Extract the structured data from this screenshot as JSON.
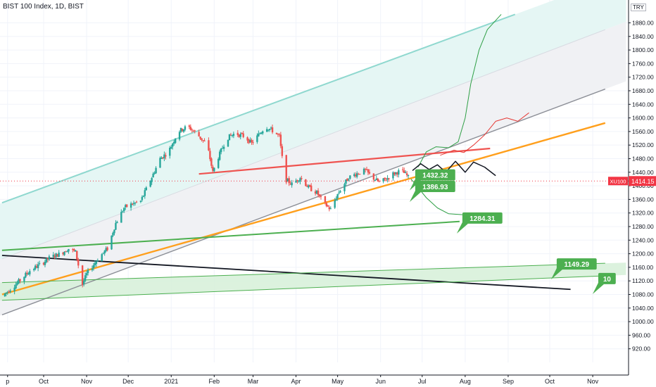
{
  "header": {
    "title": "BIST 100 Index, 1D, BIST",
    "currency": "TRY"
  },
  "colors": {
    "up": "#26a69a",
    "down": "#ef5350",
    "channel_line": "#8fd8cf",
    "channel_fill": "#e5f6f4",
    "inner_fill": "#f0f1f4",
    "orange": "#ff9f1c",
    "green": "#4caf50",
    "resistance": "#ef5350",
    "last_price": "#f23645"
  },
  "chart_data": {
    "type": "candlestick",
    "symbol": "XU100",
    "last_price": 1414.15,
    "last_price_label": "1414.15",
    "x_axis": {
      "ticks": [
        {
          "label": "p",
          "day": -26
        },
        {
          "label": "Oct",
          "day": 0
        },
        {
          "label": "Nov",
          "day": 31
        },
        {
          "label": "Dec",
          "day": 61
        },
        {
          "label": "2021",
          "day": 92
        },
        {
          "label": "Feb",
          "day": 123
        },
        {
          "label": "Mar",
          "day": 151
        },
        {
          "label": "Apr",
          "day": 182
        },
        {
          "label": "May",
          "day": 212
        },
        {
          "label": "Jun",
          "day": 243
        },
        {
          "label": "Jul",
          "day": 273
        },
        {
          "label": "Aug",
          "day": 304
        },
        {
          "label": "Sep",
          "day": 335
        },
        {
          "label": "Oct",
          "day": 365
        },
        {
          "label": "Nov",
          "day": 396
        }
      ]
    },
    "y_axis": {
      "min": 880,
      "max": 1910,
      "ticks": [
        920,
        960,
        1000,
        1040,
        1080,
        1120,
        1160,
        1200,
        1240,
        1280,
        1320,
        1360,
        1400,
        1440,
        1480,
        1520,
        1560,
        1600,
        1640,
        1680,
        1720,
        1760,
        1800,
        1840,
        1880
      ],
      "tick_labels": [
        "920.00",
        "960.00",
        "1000.00",
        "1040.00",
        "1080.00",
        "1120.00",
        "1160.00",
        "1200.00",
        "1240.00",
        "1280.00",
        "1320.00",
        "1360.00",
        "1400.00",
        "1440.00",
        "1480.00",
        "1520.00",
        "1560.00",
        "1600.00",
        "1640.00",
        "1680.00",
        "1720.00",
        "1760.00",
        "1800.00",
        "1840.00",
        "1880.00"
      ]
    },
    "price_path": [
      [
        -30,
        1075
      ],
      [
        -20,
        1110
      ],
      [
        -10,
        1150
      ],
      [
        0,
        1175
      ],
      [
        5,
        1190
      ],
      [
        12,
        1200
      ],
      [
        18,
        1215
      ],
      [
        23,
        1205
      ],
      [
        28,
        1110
      ],
      [
        31,
        1140
      ],
      [
        40,
        1190
      ],
      [
        46,
        1215
      ],
      [
        52,
        1290
      ],
      [
        58,
        1335
      ],
      [
        63,
        1345
      ],
      [
        70,
        1355
      ],
      [
        78,
        1425
      ],
      [
        84,
        1480
      ],
      [
        90,
        1500
      ],
      [
        97,
        1560
      ],
      [
        104,
        1575
      ],
      [
        110,
        1555
      ],
      [
        118,
        1520
      ],
      [
        122,
        1440
      ],
      [
        126,
        1485
      ],
      [
        132,
        1540
      ],
      [
        138,
        1555
      ],
      [
        145,
        1545
      ],
      [
        150,
        1525
      ],
      [
        155,
        1550
      ],
      [
        160,
        1575
      ],
      [
        166,
        1560
      ],
      [
        170,
        1545
      ],
      [
        174,
        1420
      ],
      [
        179,
        1405
      ],
      [
        185,
        1425
      ],
      [
        191,
        1395
      ],
      [
        197,
        1380
      ],
      [
        202,
        1350
      ],
      [
        207,
        1330
      ],
      [
        212,
        1375
      ],
      [
        220,
        1425
      ],
      [
        228,
        1440
      ],
      [
        232,
        1445
      ],
      [
        237,
        1425
      ],
      [
        242,
        1410
      ],
      [
        247,
        1420
      ],
      [
        252,
        1435
      ],
      [
        258,
        1445
      ],
      [
        262,
        1430
      ],
      [
        265,
        1414
      ]
    ],
    "trendlines": [
      {
        "name": "channel-upper",
        "points": [
          [
            -30,
            1350
          ],
          [
            340,
            1905
          ]
        ]
      },
      {
        "name": "channel-mid",
        "points": [
          [
            -30,
            1185
          ],
          [
            405,
            1860
          ]
        ]
      },
      {
        "name": "channel-lower",
        "points": [
          [
            -30,
            1020
          ],
          [
            405,
            1685
          ]
        ]
      },
      {
        "name": "orange-support",
        "points": [
          [
            -30,
            1080
          ],
          [
            405,
            1585
          ]
        ]
      },
      {
        "name": "resistance",
        "points": [
          [
            112,
            1435
          ],
          [
            322,
            1510
          ]
        ]
      },
      {
        "name": "green-support",
        "points": [
          [
            -30,
            1210
          ],
          [
            300,
            1295
          ]
        ]
      },
      {
        "name": "black-line",
        "points": [
          [
            -30,
            1195
          ],
          [
            380,
            1095
          ]
        ]
      },
      {
        "name": "lower-band-top",
        "points": [
          [
            -30,
            1115
          ],
          [
            405,
            1172
          ]
        ]
      },
      {
        "name": "lower-band-bottom",
        "points": [
          [
            -30,
            1063
          ],
          [
            405,
            1135
          ]
        ]
      }
    ],
    "projections": [
      {
        "name": "bull-path",
        "color": "green",
        "points": [
          [
            270,
            1455
          ],
          [
            276,
            1500
          ],
          [
            283,
            1515
          ],
          [
            292,
            1512
          ],
          [
            299,
            1530
          ],
          [
            304,
            1600
          ],
          [
            308,
            1700
          ],
          [
            314,
            1800
          ],
          [
            320,
            1860
          ],
          [
            330,
            1905
          ]
        ]
      },
      {
        "name": "bear-path",
        "color": "green",
        "points": [
          [
            265,
            1420
          ],
          [
            270,
            1395
          ],
          [
            276,
            1365
          ],
          [
            284,
            1335
          ],
          [
            292,
            1318
          ],
          [
            302,
            1315
          ]
        ]
      },
      {
        "name": "red-path",
        "color": "red",
        "points": [
          [
            286,
            1490
          ],
          [
            296,
            1505
          ],
          [
            303,
            1498
          ],
          [
            310,
            1520
          ],
          [
            318,
            1550
          ],
          [
            326,
            1590
          ],
          [
            334,
            1600
          ],
          [
            342,
            1590
          ],
          [
            350,
            1615
          ]
        ]
      },
      {
        "name": "black-path",
        "color": "black",
        "points": [
          [
            266,
            1445
          ],
          [
            272,
            1465
          ],
          [
            278,
            1448
          ],
          [
            284,
            1462
          ],
          [
            290,
            1440
          ],
          [
            297,
            1472
          ],
          [
            304,
            1440
          ],
          [
            310,
            1470
          ],
          [
            318,
            1455
          ],
          [
            326,
            1430
          ]
        ]
      }
    ],
    "annotations": [
      {
        "label": "1432.32",
        "day": 268,
        "price": 1432,
        "color": "green"
      },
      {
        "label": "1386.93",
        "day": 268,
        "price": 1398,
        "color": "green"
      },
      {
        "label": "1284.31",
        "day": 302,
        "price": 1305,
        "color": "green"
      },
      {
        "label": "1149.29",
        "day": 370,
        "price": 1170,
        "color": "green"
      },
      {
        "label": "10",
        "day": 400,
        "price": 1127,
        "color": "green"
      }
    ]
  }
}
